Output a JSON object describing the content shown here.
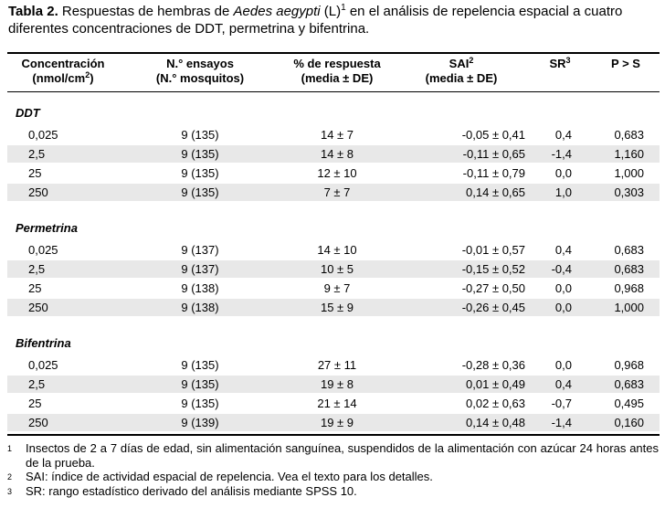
{
  "caption": {
    "label": "Tabla 2.",
    "part1": " Respuestas de hembras de ",
    "species": "Aedes aegypti",
    "part2": " (L)",
    "sup": "1",
    "part3": " en el análisis de repelencia espacial a cuatro diferentes concentraciones de DDT, permetrina y bifentrina."
  },
  "header": {
    "conc_line1": "Concentración",
    "conc_line2a": "(nmol/cm",
    "conc_sup": "2",
    "conc_line2b": ")",
    "ens_line1": "N.° ensayos",
    "ens_line2": "(N.° mosquitos)",
    "resp_line1": "% de respuesta",
    "resp_line2": "(media ± DE)",
    "sai_line1": "SAI",
    "sai_sup": "2",
    "sai_line2": "(media ± DE)",
    "sr": "SR",
    "sr_sup": "3",
    "p": "P > S"
  },
  "groups": [
    {
      "name": "DDT",
      "rows": [
        {
          "conc": "0,025",
          "ensayos": "9 (135)",
          "respuesta": "14 ± 7",
          "sai": "-0,05 ± 0,41",
          "sr": "0,4",
          "p": "0,683"
        },
        {
          "conc": "2,5",
          "ensayos": "9 (135)",
          "respuesta": "14 ± 8",
          "sai": "-0,11 ± 0,65",
          "sr": "-1,4",
          "p": "1,160"
        },
        {
          "conc": "25",
          "ensayos": "9 (135)",
          "respuesta": "12 ± 10",
          "sai": "-0,11 ± 0,79",
          "sr": "0,0",
          "p": "1,000"
        },
        {
          "conc": "250",
          "ensayos": "9 (135)",
          "respuesta": "7 ± 7",
          "sai": "0,14 ± 0,65",
          "sr": "1,0",
          "p": "0,303"
        }
      ]
    },
    {
      "name": "Permetrina",
      "rows": [
        {
          "conc": "0,025",
          "ensayos": "9 (137)",
          "respuesta": "14 ± 10",
          "sai": "-0,01 ± 0,57",
          "sr": "0,4",
          "p": "0,683"
        },
        {
          "conc": "2,5",
          "ensayos": "9 (137)",
          "respuesta": "10 ± 5",
          "sai": "-0,15 ± 0,52",
          "sr": "-0,4",
          "p": "0,683"
        },
        {
          "conc": "25",
          "ensayos": "9 (138)",
          "respuesta": "9 ± 7",
          "sai": "-0,27 ± 0,50",
          "sr": "0,0",
          "p": "0,968"
        },
        {
          "conc": "250",
          "ensayos": "9 (138)",
          "respuesta": "15 ± 9",
          "sai": "-0,26 ± 0,45",
          "sr": "0,0",
          "p": "1,000"
        }
      ]
    },
    {
      "name": "Bifentrina",
      "rows": [
        {
          "conc": "0,025",
          "ensayos": "9 (135)",
          "respuesta": "27 ± 11",
          "sai": "-0,28 ± 0,36",
          "sr": "0,0",
          "p": "0,968"
        },
        {
          "conc": "2,5",
          "ensayos": "9 (135)",
          "respuesta": "19 ± 8",
          "sai": "0,01 ± 0,49",
          "sr": "0,4",
          "p": "0,683"
        },
        {
          "conc": "25",
          "ensayos": "9 (135)",
          "respuesta": "21 ± 14",
          "sai": "0,02 ± 0,63",
          "sr": "-0,7",
          "p": "0,495"
        },
        {
          "conc": "250",
          "ensayos": "9 (139)",
          "respuesta": "19 ± 9",
          "sai": "0,14 ± 0,48",
          "sr": "-1,4",
          "p": "0,160"
        }
      ]
    }
  ],
  "footnotes": [
    {
      "num": "1",
      "text": "Insectos de 2 a 7 días de edad, sin alimentación sanguínea, suspendidos de la alimentación con azúcar 24 horas antes de la prueba."
    },
    {
      "num": "2",
      "text": "SAI: índice de actividad espacial de repelencia. Vea el texto para los detalles."
    },
    {
      "num": "3",
      "text": "SR: rango estadístico derivado del análisis mediante SPSS 10."
    }
  ],
  "colors": {
    "band": "#e8e8e8",
    "rule": "#000000"
  }
}
